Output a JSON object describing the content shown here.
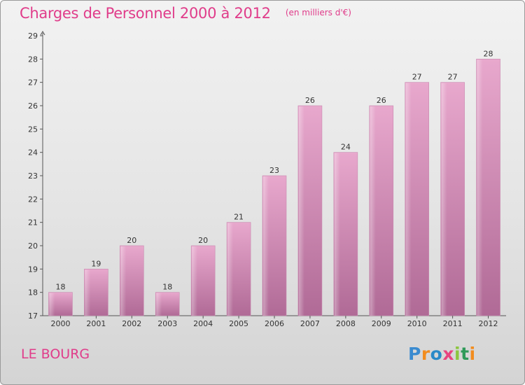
{
  "header": {
    "title": "Charges de Personnel 2000 à 2012",
    "subtitle": "(en milliers d'€)"
  },
  "footer": {
    "commune": "LE BOURG",
    "logo_text": "Proxiti"
  },
  "colors": {
    "accent": "#e03c8a",
    "bar_top": "#e8a8cd",
    "bar_bottom": "#b06a96"
  },
  "chart_data": {
    "type": "bar",
    "categories": [
      "2000",
      "2001",
      "2002",
      "2003",
      "2004",
      "2005",
      "2006",
      "2007",
      "2008",
      "2009",
      "2010",
      "2011",
      "2012"
    ],
    "values": [
      18,
      19,
      20,
      18,
      20,
      21,
      23,
      26,
      24,
      26,
      27,
      27,
      28
    ],
    "title": "Charges de Personnel 2000 à 2012",
    "subtitle": "(en milliers d'€)",
    "xlabel": "",
    "ylabel": "",
    "ylim": [
      17,
      29
    ],
    "yticks": [
      17,
      18,
      19,
      20,
      21,
      22,
      23,
      24,
      25,
      26,
      27,
      28,
      29
    ],
    "grid": false,
    "data_labels": true
  }
}
